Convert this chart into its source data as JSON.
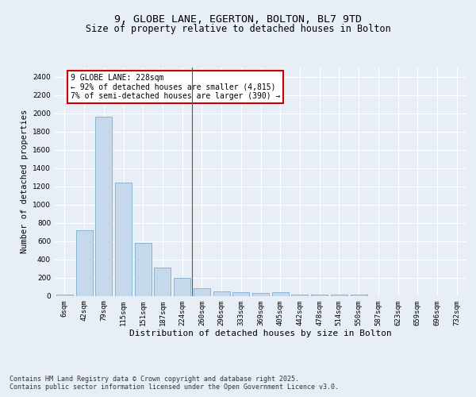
{
  "title1": "9, GLOBE LANE, EGERTON, BOLTON, BL7 9TD",
  "title2": "Size of property relative to detached houses in Bolton",
  "xlabel": "Distribution of detached houses by size in Bolton",
  "ylabel": "Number of detached properties",
  "categories": [
    "6sqm",
    "42sqm",
    "79sqm",
    "115sqm",
    "151sqm",
    "187sqm",
    "224sqm",
    "260sqm",
    "296sqm",
    "333sqm",
    "369sqm",
    "405sqm",
    "442sqm",
    "478sqm",
    "514sqm",
    "550sqm",
    "587sqm",
    "623sqm",
    "659sqm",
    "696sqm",
    "732sqm"
  ],
  "values": [
    15,
    715,
    1960,
    1235,
    575,
    305,
    200,
    85,
    45,
    35,
    30,
    35,
    15,
    15,
    15,
    10,
    0,
    0,
    0,
    0,
    0
  ],
  "bar_color": "#c6d9ec",
  "bar_edge_color": "#7aaecb",
  "vline_x": 6.5,
  "vline_color": "#555555",
  "annotation_text": "9 GLOBE LANE: 228sqm\n← 92% of detached houses are smaller (4,815)\n7% of semi-detached houses are larger (390) →",
  "annotation_box_color": "#cc0000",
  "annotation_fill": "#ffffff",
  "ylim": [
    0,
    2500
  ],
  "yticks": [
    0,
    200,
    400,
    600,
    800,
    1000,
    1200,
    1400,
    1600,
    1800,
    2000,
    2200,
    2400
  ],
  "background_color": "#e8eef5",
  "grid_color": "#ffffff",
  "footer": "Contains HM Land Registry data © Crown copyright and database right 2025.\nContains public sector information licensed under the Open Government Licence v3.0.",
  "title1_fontsize": 9.5,
  "title2_fontsize": 8.5,
  "xlabel_fontsize": 8,
  "ylabel_fontsize": 7.5,
  "tick_fontsize": 6.5,
  "footer_fontsize": 6,
  "annotation_fontsize": 7
}
